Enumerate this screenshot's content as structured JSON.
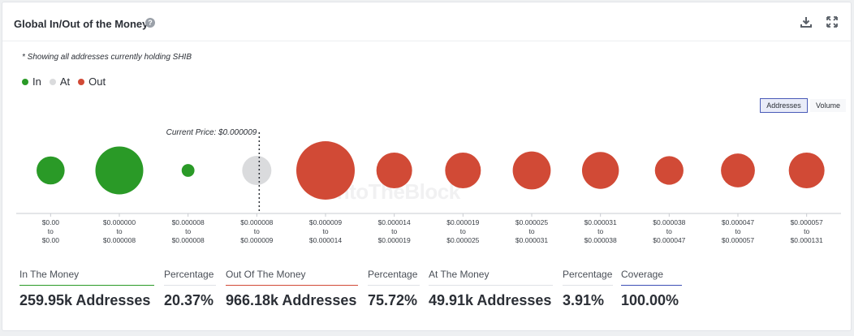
{
  "header": {
    "title": "Global In/Out of the Money",
    "help_icon": "help-icon",
    "download_icon": "download-icon",
    "expand_icon": "expand-icon"
  },
  "note": "* Showing all addresses currently holding SHIB",
  "legend": [
    {
      "label": "In",
      "color": "#2a9a27"
    },
    {
      "label": "At",
      "color": "#dadbdd"
    },
    {
      "label": "Out",
      "color": "#d14a36"
    }
  ],
  "toggles": {
    "addresses": "Addresses",
    "volume": "Volume",
    "active": "addresses"
  },
  "watermark": "IntoTheBlock",
  "chart_data": {
    "type": "bubble",
    "current_price_label": "Current Price: $0.000009",
    "current_price_after_index": 3,
    "buckets": [
      {
        "range_low": "$0.00",
        "to": "to",
        "range_high": "$0.00",
        "status": "in",
        "relative_size": 0.48
      },
      {
        "range_low": "$0.000000",
        "to": "to",
        "range_high": "$0.000008",
        "status": "in",
        "relative_size": 0.82
      },
      {
        "range_low": "$0.000008",
        "to": "to",
        "range_high": "$0.000008",
        "status": "in",
        "relative_size": 0.22
      },
      {
        "range_low": "$0.000008",
        "to": "to",
        "range_high": "$0.000009",
        "status": "at",
        "relative_size": 0.5
      },
      {
        "range_low": "$0.000009",
        "to": "to",
        "range_high": "$0.000014",
        "status": "out",
        "relative_size": 1.0
      },
      {
        "range_low": "$0.000014",
        "to": "to",
        "range_high": "$0.000019",
        "status": "out",
        "relative_size": 0.61
      },
      {
        "range_low": "$0.000019",
        "to": "to",
        "range_high": "$0.000025",
        "status": "out",
        "relative_size": 0.61
      },
      {
        "range_low": "$0.000025",
        "to": "to",
        "range_high": "$0.000031",
        "status": "out",
        "relative_size": 0.65
      },
      {
        "range_low": "$0.000031",
        "to": "to",
        "range_high": "$0.000038",
        "status": "out",
        "relative_size": 0.63
      },
      {
        "range_low": "$0.000038",
        "to": "to",
        "range_high": "$0.000047",
        "status": "out",
        "relative_size": 0.49
      },
      {
        "range_low": "$0.000047",
        "to": "to",
        "range_high": "$0.000057",
        "status": "out",
        "relative_size": 0.58
      },
      {
        "range_low": "$0.000057",
        "to": "to",
        "range_high": "$0.000131",
        "status": "out",
        "relative_size": 0.61
      }
    ],
    "colors": {
      "in": "#2a9a27",
      "at": "#dadbdd",
      "out": "#d14a36"
    }
  },
  "stats": [
    {
      "label": "In The Money",
      "value": "259.95k Addresses",
      "underline": "#2a9a27"
    },
    {
      "label": "Percentage",
      "value": "20.37%",
      "underline": "#dfe2e6"
    },
    {
      "label": "Out Of The Money",
      "value": "966.18k Addresses",
      "underline": "#d14a36"
    },
    {
      "label": "Percentage",
      "value": "75.72%",
      "underline": "#dfe2e6"
    },
    {
      "label": "At The Money",
      "value": "49.91k Addresses",
      "underline": "#dfe2e6"
    },
    {
      "label": "Percentage",
      "value": "3.91%",
      "underline": "#dfe2e6"
    },
    {
      "label": "Coverage",
      "value": "100.00%",
      "underline": "#3d4fb5"
    }
  ]
}
